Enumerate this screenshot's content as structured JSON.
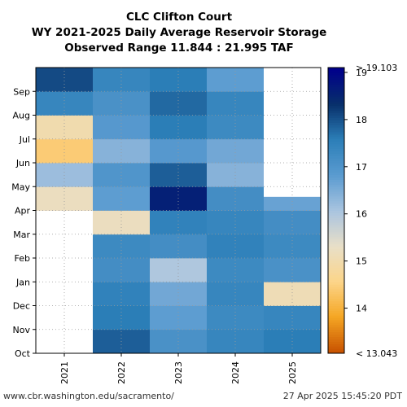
{
  "chart_data": {
    "type": "heatmap",
    "title": [
      "CLC Clifton Court",
      "WY 2021-2025 Daily Average Reservoir Storage",
      "Observed Range 11.844 : 21.995 TAF"
    ],
    "x_categories": [
      "2021",
      "2022",
      "2023",
      "2024",
      "2025"
    ],
    "y_tick_labels": [
      "Oct",
      "Nov",
      "Dec",
      "Jan",
      "Feb",
      "Mar",
      "Apr",
      "May",
      "Jun",
      "Jul",
      "Aug",
      "Sep"
    ],
    "colorbar": {
      "min": 13.043,
      "max": 19.103,
      "ticks": [
        14,
        15,
        16,
        17,
        18,
        19
      ],
      "min_label": "< 13.043",
      "max_label": "> 19.103",
      "colors": [
        "#c85200",
        "#f5a623",
        "#fcd58a",
        "#e8dfc8",
        "#a9c4e0",
        "#5a9bd0",
        "#2c7fb8",
        "#08306b",
        "#00008b"
      ]
    },
    "grid": true,
    "water_year_start_month": "Oct",
    "series": [
      {
        "name": "2021",
        "data_start_month_index": 6,
        "monthly_values": [
          null,
          null,
          null,
          null,
          null,
          null,
          15.2,
          16.2,
          14.4,
          15.0,
          17.4,
          18.1
        ]
      },
      {
        "name": "2022",
        "data_start_month_index": 0,
        "monthly_values": [
          17.9,
          17.6,
          17.5,
          17.2,
          17.3,
          15.2,
          16.8,
          17.0,
          16.4,
          16.9,
          17.1,
          17.4
        ]
      },
      {
        "name": "2023",
        "data_start_month_index": 0,
        "monthly_values": [
          17.1,
          16.8,
          16.6,
          16.0,
          17.2,
          17.5,
          18.6,
          17.9,
          16.9,
          17.6,
          17.8,
          17.6
        ]
      },
      {
        "name": "2024",
        "data_start_month_index": 0,
        "monthly_values": [
          17.4,
          17.3,
          17.4,
          17.3,
          17.5,
          17.4,
          17.2,
          16.4,
          16.6,
          17.3,
          17.4,
          16.8
        ]
      },
      {
        "name": "2025",
        "data_start_month_index": 0,
        "monthly_values": [
          17.6,
          17.4,
          15.1,
          17.1,
          17.3,
          17.2,
          16.7,
          null,
          null,
          null,
          null,
          null
        ],
        "data_end_fraction": 0.57
      }
    ]
  },
  "footer": {
    "left": "www.cbr.washington.edu/sacramento/",
    "right": "27 Apr 2025 15:45:20 PDT"
  }
}
